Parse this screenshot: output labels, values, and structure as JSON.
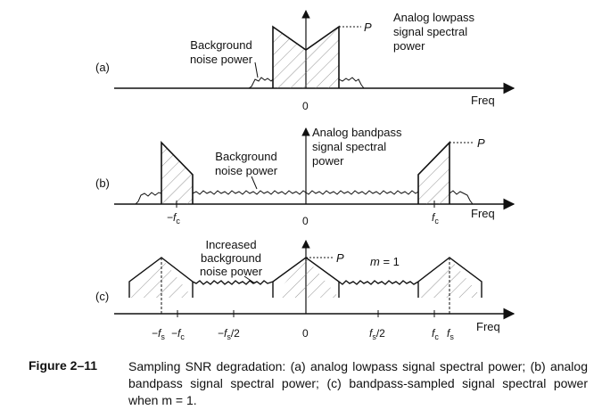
{
  "panels": {
    "a": {
      "tag": "(a)",
      "freq_label": "Freq",
      "zero_label": "0",
      "signal_label": "Analog lowpass\nsignal spectral\npower",
      "noise_label": "Background\nnoise power",
      "power_label": "P"
    },
    "b": {
      "tag": "(b)",
      "freq_label": "Freq",
      "zero_label": "0",
      "signal_label": "Analog bandpass\nsignal spectral\npower",
      "noise_label": "Background\nnoise power",
      "power_label": "P",
      "neg_fc_label": "−f",
      "neg_fc_sub": "c",
      "pos_fc_label": "f",
      "pos_fc_sub": "c"
    },
    "c": {
      "tag": "(c)",
      "freq_label": "Freq",
      "zero_label": "0",
      "noise_label": "Increased\nbackground\nnoise power",
      "power_label": "P",
      "m_label": "m",
      "m_value": " = 1",
      "ticks": [
        {
          "main": "−f",
          "sub": "s",
          "tail": ""
        },
        {
          "main": "−f",
          "sub": "c",
          "tail": ""
        },
        {
          "main": "−f",
          "sub": "s",
          "tail": "/2"
        },
        {
          "main": "0",
          "sub": "",
          "tail": ""
        },
        {
          "main": "f",
          "sub": "s",
          "tail": "/2"
        },
        {
          "main": "f",
          "sub": "c",
          "tail": ""
        },
        {
          "main": "f",
          "sub": "s",
          "tail": ""
        }
      ]
    }
  },
  "caption": {
    "number": "Figure 2–11",
    "text": "Sampling SNR degradation: (a) analog lowpass signal spectral power; (b) analog bandpass signal spectral power; (c) bandpass-sampled signal spectral power when m = 1."
  }
}
